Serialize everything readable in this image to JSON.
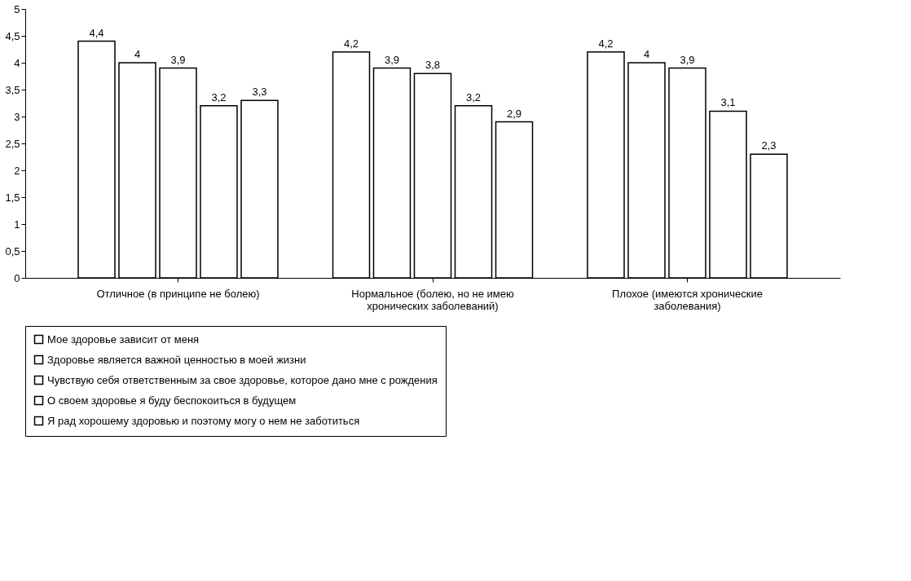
{
  "chart_data": {
    "type": "bar",
    "categories": [
      "Отличное (в принципе не болею)",
      "Нормальное (болею, но не имею\nхронических заболеваний)",
      "Плохое (имеются хронические\nзаболевания)"
    ],
    "series": [
      {
        "name": "Мое здоровье зависит от меня",
        "color": "#ffffff",
        "values": [
          4.4,
          4.2,
          4.2
        ],
        "value_labels": [
          "4,4",
          "4,2",
          "4,2"
        ]
      },
      {
        "name": "Здоровье является важной ценностью в моей жизни",
        "color": "#ffffff",
        "values": [
          4,
          3.9,
          4
        ],
        "value_labels": [
          "4",
          "3,9",
          "4"
        ]
      },
      {
        "name": "Чувствую себя ответственным за свое здоровье, которое дано мне с рождения",
        "color": "#ffffff",
        "values": [
          3.9,
          3.8,
          3.9
        ],
        "value_labels": [
          "3,9",
          "3,8",
          "3,9"
        ]
      },
      {
        "name": "О своем здоровье я буду беспокоиться в будущем",
        "color": "#ffffff",
        "values": [
          3.2,
          3.2,
          3.1
        ],
        "value_labels": [
          "3,2",
          "3,2",
          "3,1"
        ]
      },
      {
        "name": "Я рад хорошему здоровью и поэтому могу о нем не заботиться",
        "color": "#ffffff",
        "values": [
          3.3,
          2.9,
          2.3
        ],
        "value_labels": [
          "3,3",
          "2,9",
          "2,3"
        ]
      }
    ],
    "ylim": [
      0,
      5
    ],
    "yticks": [
      0,
      {
        "value": 0.5,
        "label": "0,5"
      },
      1,
      {
        "value": 1.5,
        "label": "1,5"
      },
      2,
      {
        "value": 2.5,
        "label": "2,5"
      },
      3,
      {
        "value": 3.5,
        "label": "3,5"
      },
      4,
      {
        "value": 4.5,
        "label": "4,5"
      },
      5
    ],
    "legend": "bottom",
    "grid": false
  }
}
